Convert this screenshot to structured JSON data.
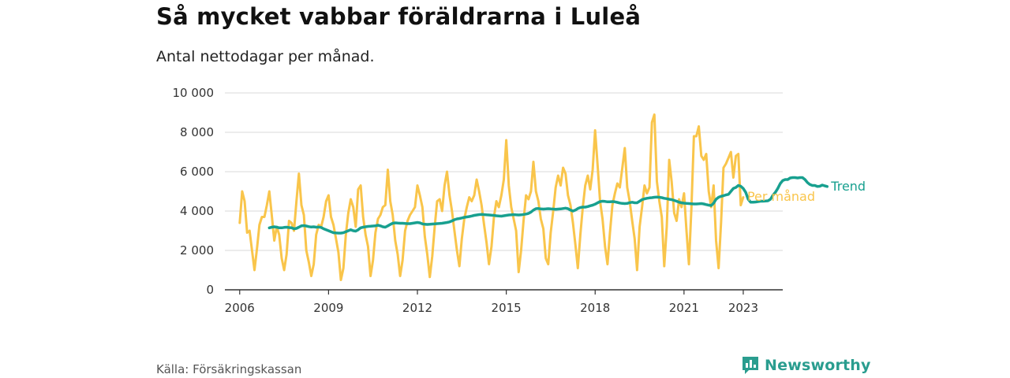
{
  "header": {
    "title": "Så mycket vabbar föräldrarna i Luleå",
    "subtitle": "Antal nettodagar per månad."
  },
  "footer": {
    "source": "Källa: Försäkringskassan",
    "brand": "Newsworthy",
    "brand_icon": "newsworthy-logo-icon"
  },
  "colors": {
    "monthly": "#f9c54b",
    "trend": "#18a08f",
    "grid": "#d9d9d9",
    "axis": "#333333"
  },
  "chart_data": {
    "type": "line",
    "title": "Så mycket vabbar föräldrarna i Luleå",
    "subtitle": "Antal nettodagar per månad.",
    "xlabel": "",
    "ylabel": "",
    "x_ticks": [
      {
        "label": "2006",
        "year": 2006
      },
      {
        "label": "2009",
        "year": 2009
      },
      {
        "label": "2012",
        "year": 2012
      },
      {
        "label": "2015",
        "year": 2015
      },
      {
        "label": "2018",
        "year": 2018
      },
      {
        "label": "2021",
        "year": 2021
      },
      {
        "label": "2023",
        "year": 2023
      }
    ],
    "y_ticks": [
      {
        "label": "0",
        "value": 0
      },
      {
        "label": "2 000",
        "value": 2000
      },
      {
        "label": "4 000",
        "value": 4000
      },
      {
        "label": "6 000",
        "value": 6000
      },
      {
        "label": "8 000",
        "value": 8000
      },
      {
        "label": "10 000",
        "value": 10000
      }
    ],
    "xlim": [
      "2005-07",
      "2024-05"
    ],
    "ylim": [
      0,
      10000
    ],
    "grid": true,
    "legend": "end-of-line labels",
    "series": [
      {
        "name": "Per månad",
        "color": "#f9c54b",
        "start": "2006-01",
        "values": [
          3400,
          5000,
          4500,
          2900,
          3000,
          2000,
          1000,
          2100,
          3300,
          3700,
          3700,
          4300,
          5000,
          3800,
          2500,
          3200,
          2800,
          1600,
          1000,
          1800,
          3500,
          3400,
          3000,
          4500,
          5900,
          4300,
          3800,
          2000,
          1400,
          700,
          1300,
          2800,
          3300,
          3200,
          3700,
          4500,
          4800,
          3700,
          3300,
          2600,
          1900,
          500,
          1100,
          2800,
          3900,
          4600,
          4200,
          3200,
          5100,
          5300,
          3700,
          2800,
          2200,
          700,
          1500,
          2900,
          3600,
          3800,
          4200,
          4300,
          6100,
          4500,
          3800,
          2500,
          1800,
          700,
          1500,
          3000,
          3500,
          3800,
          4000,
          4200,
          5300,
          4800,
          4200,
          2700,
          1800,
          650,
          1700,
          3200,
          4500,
          4600,
          4000,
          5300,
          6000,
          4800,
          4000,
          3000,
          2000,
          1200,
          2600,
          3600,
          4200,
          4700,
          4500,
          4800,
          5600,
          5000,
          4300,
          3300,
          2400,
          1300,
          2200,
          3700,
          4500,
          4200,
          4800,
          5600,
          7600,
          5300,
          4200,
          3600,
          3000,
          900,
          2000,
          3500,
          4800,
          4600,
          5000,
          6500,
          5000,
          4500,
          3600,
          3100,
          1600,
          1300,
          2900,
          4000,
          5200,
          5800,
          5300,
          6200,
          5900,
          4800,
          4300,
          3400,
          2300,
          1100,
          2800,
          4200,
          5300,
          5800,
          5100,
          6100,
          8100,
          6300,
          4500,
          3600,
          2200,
          1300,
          2900,
          4300,
          4900,
          5400,
          5200,
          6200,
          7200,
          5200,
          4500,
          3500,
          2600,
          1000,
          3200,
          4200,
          5300,
          4900,
          5200,
          8500,
          8900,
          5500,
          4500,
          3700,
          1200,
          3200,
          6600,
          5500,
          3900,
          3500,
          4600,
          4200,
          4900,
          3000,
          1300,
          4200,
          7800,
          7800,
          8300,
          6800,
          6600,
          6900,
          5000,
          4200,
          5300,
          2500,
          1100,
          3400,
          6200,
          6400,
          6700,
          7000,
          5700,
          6800,
          6900,
          4300,
          4700
        ]
      },
      {
        "name": "Trend",
        "color": "#18a08f",
        "start": "2007-01",
        "values": [
          3150,
          3180,
          3200,
          3180,
          3150,
          3150,
          3170,
          3180,
          3160,
          3150,
          3100,
          3120,
          3180,
          3250,
          3260,
          3240,
          3210,
          3190,
          3200,
          3180,
          3190,
          3170,
          3100,
          3050,
          3000,
          2950,
          2900,
          2890,
          2880,
          2880,
          2900,
          2950,
          3000,
          3050,
          3000,
          2980,
          3050,
          3150,
          3180,
          3200,
          3220,
          3230,
          3240,
          3250,
          3280,
          3250,
          3200,
          3180,
          3250,
          3320,
          3380,
          3400,
          3390,
          3380,
          3380,
          3370,
          3360,
          3360,
          3380,
          3400,
          3420,
          3400,
          3350,
          3330,
          3320,
          3330,
          3340,
          3350,
          3360,
          3370,
          3380,
          3400,
          3420,
          3450,
          3500,
          3560,
          3600,
          3620,
          3650,
          3680,
          3700,
          3720,
          3750,
          3780,
          3800,
          3820,
          3830,
          3820,
          3810,
          3800,
          3790,
          3780,
          3760,
          3750,
          3740,
          3760,
          3780,
          3800,
          3810,
          3820,
          3810,
          3800,
          3810,
          3830,
          3850,
          3880,
          3950,
          4050,
          4120,
          4130,
          4110,
          4100,
          4110,
          4120,
          4110,
          4100,
          4090,
          4100,
          4110,
          4130,
          4150,
          4120,
          4050,
          4000,
          4050,
          4130,
          4180,
          4200,
          4200,
          4230,
          4270,
          4300,
          4350,
          4420,
          4480,
          4500,
          4490,
          4470,
          4470,
          4480,
          4470,
          4440,
          4410,
          4390,
          4380,
          4390,
          4430,
          4450,
          4420,
          4420,
          4500,
          4580,
          4620,
          4650,
          4670,
          4680,
          4700,
          4710,
          4700,
          4680,
          4650,
          4630,
          4600,
          4580,
          4540,
          4500,
          4450,
          4420,
          4400,
          4390,
          4380,
          4370,
          4360,
          4360,
          4370,
          4380,
          4360,
          4330,
          4300,
          4280,
          4400,
          4600,
          4700,
          4750,
          4780,
          4820,
          4850,
          5000,
          5150,
          5200,
          5300,
          5260,
          5150,
          4950,
          4600,
          4450,
          4450,
          4460,
          4480,
          4500,
          4500,
          4510,
          4520,
          4600,
          4800,
          4950,
          5150,
          5400,
          5550,
          5600,
          5600,
          5680,
          5700,
          5700,
          5680,
          5700,
          5700,
          5600,
          5450,
          5350,
          5300,
          5300,
          5250,
          5260,
          5320,
          5280,
          5250
        ]
      }
    ]
  }
}
